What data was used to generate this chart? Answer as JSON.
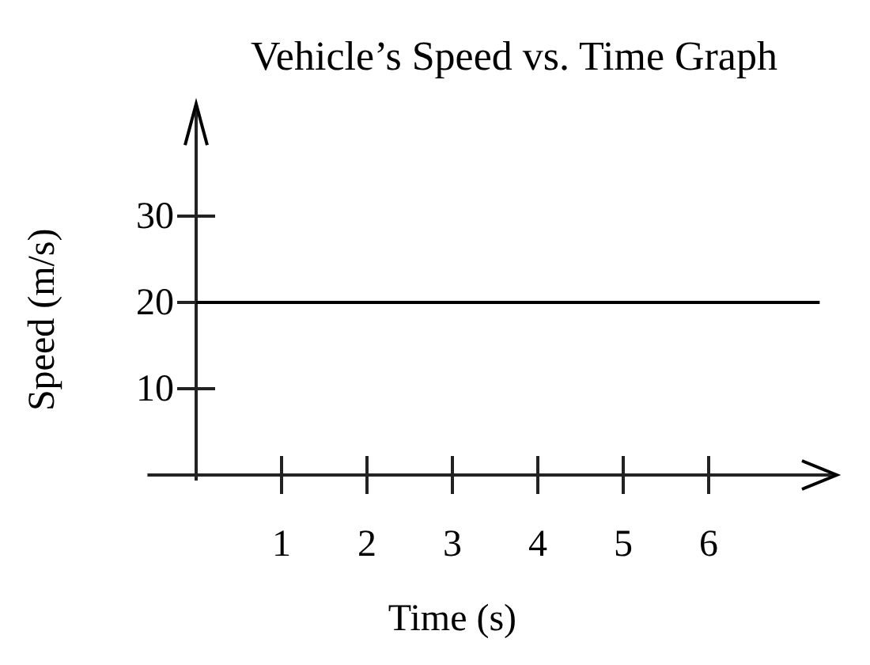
{
  "chart_data": {
    "type": "line",
    "title": "Vehicle’s Speed vs. Time Graph",
    "xlabel": "Time (s)",
    "ylabel": "Speed (m/s)",
    "x": [
      0,
      7.3
    ],
    "series": [
      {
        "color": "#000000",
        "values": [
          20,
          20
        ]
      }
    ],
    "xlim": [
      -0.57,
      7.5
    ],
    "ylim": [
      -0.64,
      43
    ],
    "xticks": [
      1,
      2,
      3,
      4,
      5,
      6
    ],
    "yticks": [
      10,
      20,
      30
    ],
    "grid": false,
    "marker": "none",
    "line_style": "solid"
  }
}
